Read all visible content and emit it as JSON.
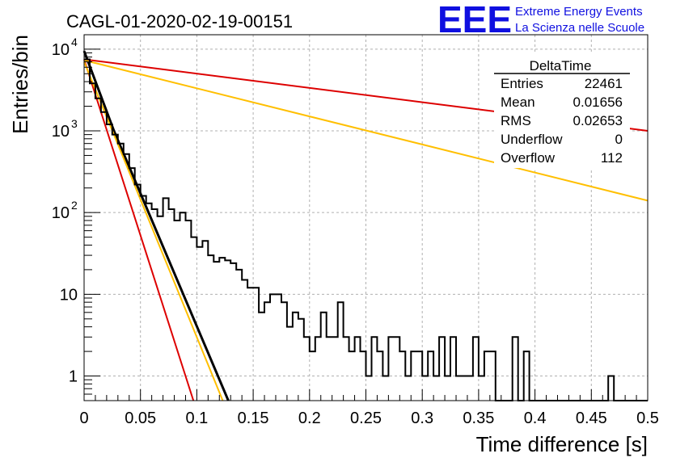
{
  "chart_data": {
    "type": "histogram",
    "title": "CAGL-01-2020-02-19-00151",
    "xlabel": "Time difference [s]",
    "ylabel": "Entries/bin",
    "xlim": [
      0,
      0.5
    ],
    "ylim": [
      0.5,
      15000
    ],
    "yscale": "log",
    "grid": true,
    "x_ticks": [
      "0",
      "0.05",
      "0.1",
      "0.15",
      "0.2",
      "0.25",
      "0.3",
      "0.35",
      "0.4",
      "0.45",
      "0.5"
    ],
    "y_ticks": [
      {
        "value": 1,
        "label": "1"
      },
      {
        "value": 10,
        "label": "10"
      },
      {
        "value": 100,
        "label": "10",
        "exp": "2"
      },
      {
        "value": 1000,
        "label": "10",
        "exp": "3"
      },
      {
        "value": 10000,
        "label": "10",
        "exp": "4"
      }
    ],
    "bin_width": 0.005,
    "histogram": [
      7500,
      3800,
      2500,
      1700,
      1200,
      900,
      700,
      520,
      350,
      220,
      160,
      130,
      110,
      90,
      150,
      110,
      80,
      100,
      80,
      50,
      38,
      45,
      30,
      25,
      28,
      26,
      24,
      20,
      15,
      12,
      12,
      6,
      8,
      10,
      10,
      8,
      4,
      6,
      5,
      3,
      2,
      3,
      6,
      3,
      3,
      8,
      3,
      2,
      3,
      2,
      1,
      3,
      2,
      1,
      3,
      3,
      2,
      1,
      2,
      2,
      1,
      2,
      1,
      3,
      1,
      3,
      1,
      1,
      1,
      3,
      1,
      2,
      2,
      0.5,
      0.5,
      0.5,
      3,
      0.5,
      2,
      0.5,
      0.5,
      0.5,
      0.5,
      0.5,
      0.5,
      0.5,
      0.5,
      0.5,
      0.5,
      0.5,
      0.5,
      0.5,
      0.5,
      1,
      0.5,
      0.5,
      0.5,
      0.5,
      0.5,
      0.5
    ],
    "fits": [
      {
        "color": "#000000",
        "points": [
          [
            0.0,
            9500
          ],
          [
            0.0265,
            1000
          ],
          [
            0.128,
            0.5
          ]
        ]
      },
      {
        "color": "#dd0000",
        "points": [
          [
            0.0,
            7500
          ],
          [
            0.097,
            0.5
          ]
        ]
      },
      {
        "color": "#ffbf00",
        "points": [
          [
            0.0,
            7000
          ],
          [
            0.123,
            0.5
          ]
        ]
      },
      {
        "color": "#dd0000",
        "points": [
          [
            0.0,
            7500
          ],
          [
            0.5,
            1000
          ]
        ]
      },
      {
        "color": "#ffbf00",
        "points": [
          [
            0.0,
            7300
          ],
          [
            0.5,
            140
          ]
        ]
      }
    ],
    "stats_box": {
      "title": "DeltaTime",
      "rows": [
        {
          "label": "Entries",
          "value": "22461"
        },
        {
          "label": "Mean",
          "value": "0.01656"
        },
        {
          "label": "RMS",
          "value": "0.02653"
        },
        {
          "label": "Underflow",
          "value": "0"
        },
        {
          "label": "Overflow",
          "value": "112"
        }
      ]
    },
    "logo": {
      "text": "EEE",
      "line1": "Extreme Energy Events",
      "line2": "La Scienza nelle Scuole",
      "color": "#1010e0"
    }
  }
}
